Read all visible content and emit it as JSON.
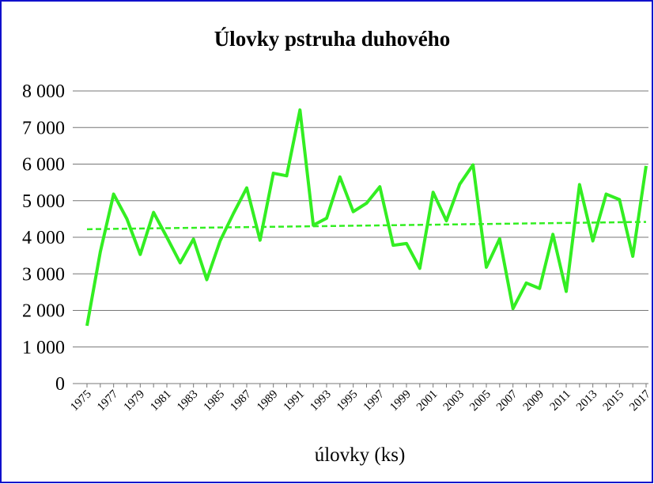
{
  "chart_data": {
    "type": "line",
    "title": "Úlovky pstruha duhového",
    "x_label": "úlovky (ks)",
    "categories": [
      "1975",
      null,
      "1977",
      null,
      "1979",
      null,
      "1981",
      null,
      "1983",
      null,
      "1985",
      null,
      "1987",
      null,
      "1989",
      null,
      "1991",
      null,
      "1993",
      null,
      "1995",
      null,
      "1997",
      null,
      "1999",
      null,
      "2001",
      null,
      "2003",
      null,
      "2005",
      null,
      "2007",
      null,
      "2009",
      null,
      "2011",
      null,
      "2013",
      null,
      "2015",
      null,
      "2017"
    ],
    "series": [
      {
        "name": "úlovky (ks)",
        "color": "#33ee22",
        "values": [
          1580,
          3600,
          5180,
          4500,
          3530,
          4680,
          4000,
          3300,
          3950,
          2840,
          3900,
          4650,
          5350,
          3920,
          5750,
          5680,
          7480,
          4330,
          4520,
          5650,
          4700,
          4930,
          5380,
          3780,
          3830,
          3150,
          5230,
          4450,
          5450,
          5980,
          3180,
          3960,
          2050,
          2750,
          2600,
          4080,
          2520,
          5440,
          3900,
          5180,
          5030,
          3480,
          5950
        ]
      }
    ],
    "trendline": {
      "start": 4220,
      "end": 4420
    },
    "ylim": [
      0,
      8000
    ],
    "yticks": [
      0,
      {
        "value": 1000,
        "label": "1 000"
      },
      {
        "value": 2000,
        "label": "2 000"
      },
      {
        "value": 3000,
        "label": "3 000"
      },
      {
        "value": 4000,
        "label": "4 000"
      },
      {
        "value": 5000,
        "label": "5 000"
      },
      {
        "value": 6000,
        "label": "6 000"
      },
      {
        "value": 7000,
        "label": "7 000"
      },
      {
        "value": 8000,
        "label": "8 000"
      }
    ],
    "grid": true
  }
}
